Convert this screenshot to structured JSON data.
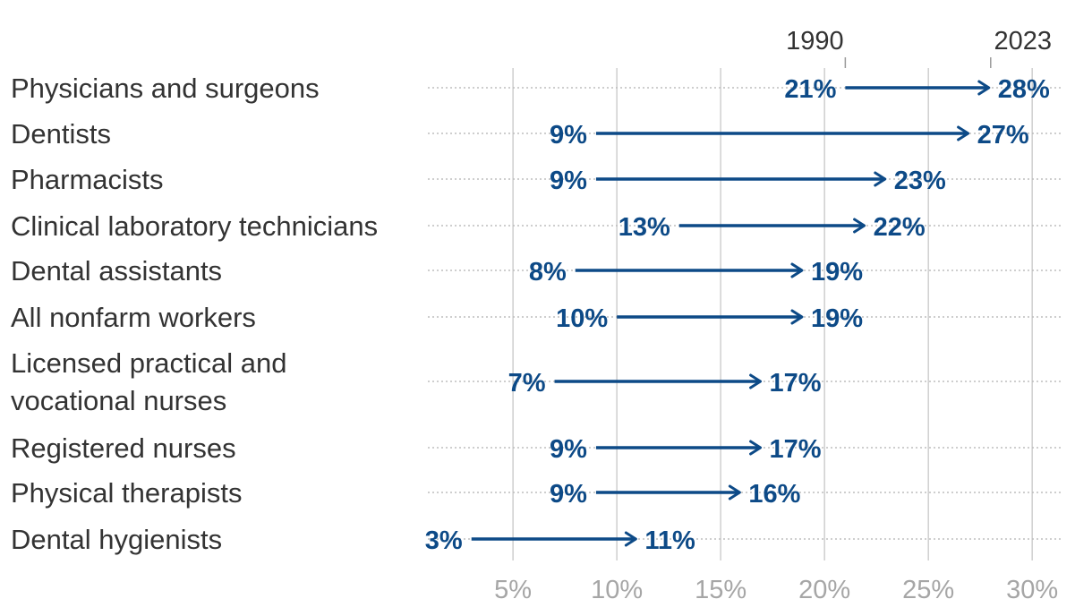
{
  "chart_data": {
    "type": "arrow",
    "series": [
      {
        "name": "1990"
      },
      {
        "name": "2023"
      }
    ],
    "categories": [
      "Physicians and surgeons",
      "Dentists",
      "Pharmacists",
      "Clinical laboratory technicians",
      "Dental assistants",
      "All nonfarm workers",
      "Licensed practical and vocational nurses",
      "Registered nurses",
      "Physical therapists",
      "Dental hygienists"
    ],
    "category_lines": [
      [
        "Physicians and surgeons"
      ],
      [
        "Dentists"
      ],
      [
        "Pharmacists"
      ],
      [
        "Clinical laboratory technicians"
      ],
      [
        "Dental assistants"
      ],
      [
        "All nonfarm workers"
      ],
      [
        "Licensed practical and",
        "vocational nurses"
      ],
      [
        "Registered nurses"
      ],
      [
        "Physical therapists"
      ],
      [
        "Dental hygienists"
      ]
    ],
    "start_values": [
      21,
      9,
      9,
      13,
      8,
      10,
      7,
      9,
      9,
      3
    ],
    "end_values": [
      28,
      27,
      23,
      22,
      19,
      19,
      17,
      17,
      16,
      11
    ],
    "start_labels": [
      "21%",
      "9%",
      "9%",
      "13%",
      "8%",
      "10%",
      "7%",
      "9%",
      "9%",
      "3%"
    ],
    "end_labels": [
      "28%",
      "27%",
      "23%",
      "22%",
      "19%",
      "19%",
      "17%",
      "17%",
      "16%",
      "11%"
    ],
    "xticks": [
      5,
      10,
      15,
      20,
      25,
      30
    ],
    "xtick_labels": [
      "5%",
      "10%",
      "15%",
      "20%",
      "25%",
      "30%"
    ],
    "xlim": [
      0.9,
      31.5
    ],
    "legend": {
      "start": "1990",
      "end": "2023",
      "placement": "top"
    },
    "grid": true,
    "color": "#0d4a87"
  }
}
